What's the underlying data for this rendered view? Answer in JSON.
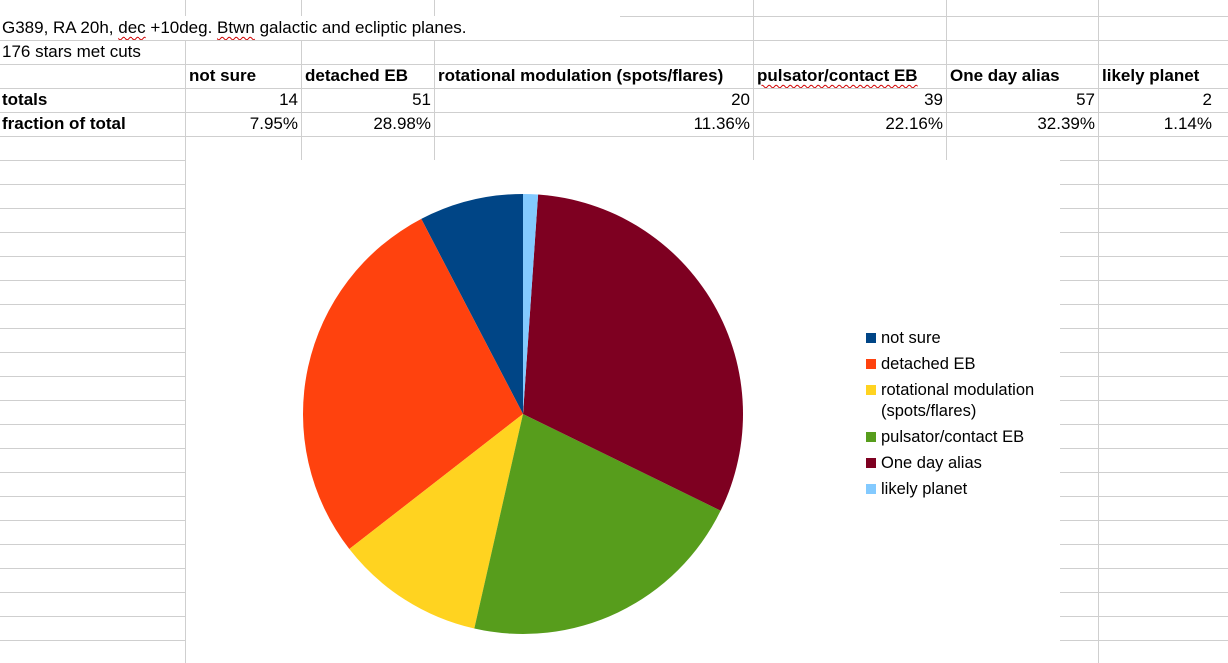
{
  "sheet": {
    "note1_prefix": "G389, RA 20h, ",
    "note1_dec": "dec",
    "note1_mid": " +10deg. ",
    "note1_btwn": "Btwn",
    "note1_suffix": " galactic and ecliptic planes.",
    "note2": "176 stars met cuts",
    "headers": [
      "not sure",
      "detached EB",
      "rotational modulation (spots/flares)",
      "pulsator/contact EB",
      "One day alias",
      "likely planet"
    ],
    "totals_label": "totals",
    "totals": [
      "14",
      "51",
      "20",
      "39",
      "57",
      "2"
    ],
    "fraction_label": "fraction of total",
    "fractions": [
      "7.95%",
      "28.98%",
      "11.36%",
      "22.16%",
      "32.39%",
      "1.14%"
    ]
  },
  "chart_data": {
    "type": "pie",
    "categories": [
      "not sure",
      "detached EB",
      "rotational modulation (spots/flares)",
      "pulsator/contact EB",
      "One day alias",
      "likely planet"
    ],
    "values": [
      14,
      51,
      20,
      39,
      57,
      2
    ],
    "colors": [
      "#004586",
      "#ff420e",
      "#ffd320",
      "#579d1c",
      "#7e0021",
      "#83caff"
    ],
    "legend": [
      "not sure",
      "detached EB",
      "rotational modulation (spots/flares)",
      "pulsator/contact EB",
      "One day alias",
      "likely planet"
    ],
    "legend_placement": "right",
    "start": "top",
    "direction": "counterclockwise"
  }
}
